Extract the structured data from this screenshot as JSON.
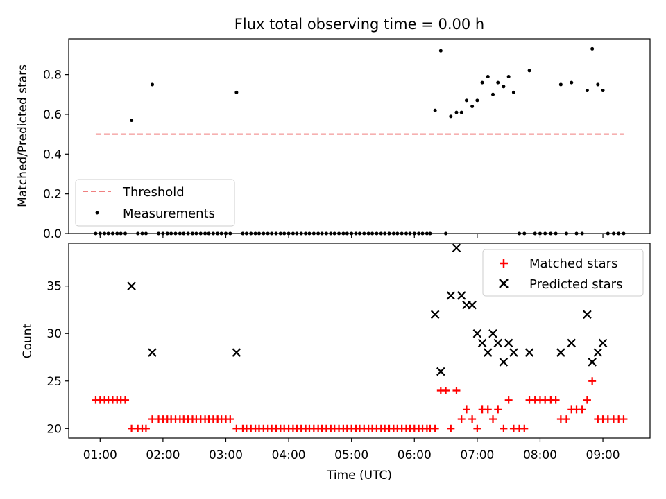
{
  "chart_data": {
    "type": "scatter",
    "title": "Flux total observing time = 0.00 h",
    "xlabel": "Time (UTC)",
    "x_unit": "hours (UTC)",
    "xticks": [
      {
        "value": 1,
        "label": "01:00"
      },
      {
        "value": 2,
        "label": "02:00"
      },
      {
        "value": 3,
        "label": "03:00"
      },
      {
        "value": 4,
        "label": "04:00"
      },
      {
        "value": 5,
        "label": "05:00"
      },
      {
        "value": 6,
        "label": "06:00"
      },
      {
        "value": 7,
        "label": "07:00"
      },
      {
        "value": 8,
        "label": "08:00"
      },
      {
        "value": 9,
        "label": "09:00"
      }
    ],
    "xlim": [
      0.5,
      9.75
    ],
    "panels": [
      {
        "ylabel": "Matched/Predicted stars",
        "ylim": [
          0,
          0.98
        ],
        "yticks": [
          0,
          0.2,
          0.4,
          0.6,
          0.8
        ],
        "ytick_labels": [
          "0.0",
          "0.2",
          "0.4",
          "0.6",
          "0.8"
        ],
        "legend_position": "lower-left",
        "series": [
          {
            "name": "Threshold",
            "kind": "dashed-line",
            "color": "#f08080",
            "x": [
              0.93,
              9.33
            ],
            "y": [
              0.5,
              0.5
            ]
          },
          {
            "name": "Measurements",
            "kind": "dot",
            "color": "#000000",
            "x": [
              0.93,
              1.0,
              1.07,
              1.13,
              1.2,
              1.27,
              1.33,
              1.4,
              1.5,
              1.6,
              1.67,
              1.73,
              1.83,
              1.93,
              2.0,
              2.07,
              2.13,
              2.2,
              2.27,
              2.33,
              2.4,
              2.47,
              2.53,
              2.6,
              2.67,
              2.73,
              2.8,
              2.87,
              2.93,
              3.0,
              3.07,
              3.17,
              3.27,
              3.33,
              3.4,
              3.47,
              3.53,
              3.6,
              3.67,
              3.73,
              3.8,
              3.87,
              3.93,
              4.0,
              4.07,
              4.13,
              4.2,
              4.27,
              4.33,
              4.4,
              4.47,
              4.53,
              4.6,
              4.67,
              4.73,
              4.8,
              4.87,
              4.93,
              5.0,
              5.07,
              5.13,
              5.2,
              5.27,
              5.33,
              5.4,
              5.47,
              5.53,
              5.6,
              5.67,
              5.73,
              5.8,
              5.87,
              5.93,
              6.0,
              6.07,
              6.13,
              6.2,
              6.25,
              6.33,
              6.42,
              6.5,
              6.58,
              6.67,
              6.75,
              6.83,
              6.92,
              7.0,
              7.08,
              7.17,
              7.25,
              7.33,
              7.42,
              7.5,
              7.58,
              7.67,
              7.75,
              7.83,
              7.92,
              8.0,
              8.08,
              8.17,
              8.25,
              8.33,
              8.42,
              8.5,
              8.58,
              8.67,
              8.75,
              8.83,
              8.92,
              9.0,
              9.08,
              9.17,
              9.25,
              9.33
            ],
            "y": [
              0,
              0,
              0,
              0,
              0,
              0,
              0,
              0,
              0.57,
              0,
              0,
              0,
              0.75,
              0,
              0,
              0,
              0,
              0,
              0,
              0,
              0,
              0,
              0,
              0,
              0,
              0,
              0,
              0,
              0,
              0,
              0,
              0.71,
              0,
              0,
              0,
              0,
              0,
              0,
              0,
              0,
              0,
              0,
              0,
              0,
              0,
              0,
              0,
              0,
              0,
              0,
              0,
              0,
              0,
              0,
              0,
              0,
              0,
              0,
              0,
              0,
              0,
              0,
              0,
              0,
              0,
              0,
              0,
              0,
              0,
              0,
              0,
              0,
              0,
              0,
              0,
              0,
              0,
              0,
              0.62,
              0.92,
              0,
              0.59,
              0.61,
              0.61,
              0.67,
              0.64,
              0.67,
              0.76,
              0.79,
              0.7,
              0.76,
              0.74,
              0.79,
              0.71,
              0,
              0,
              0.82,
              0,
              0,
              0,
              0,
              0,
              0.75,
              0,
              0.76,
              0,
              0,
              0.72,
              0.93,
              0.75,
              0.72,
              0,
              0,
              0,
              0
            ]
          }
        ]
      },
      {
        "ylabel": "Count",
        "ylim": [
          19,
          39.5
        ],
        "yticks": [
          20,
          25,
          30,
          35
        ],
        "ytick_labels": [
          "20",
          "25",
          "30",
          "35"
        ],
        "legend_position": "upper-right",
        "series": [
          {
            "name": "Matched stars",
            "kind": "plus",
            "color": "#ff0000",
            "x": [
              0.93,
              1.0,
              1.07,
              1.13,
              1.2,
              1.27,
              1.33,
              1.4,
              1.5,
              1.6,
              1.67,
              1.73,
              1.83,
              1.93,
              2.0,
              2.07,
              2.13,
              2.2,
              2.27,
              2.33,
              2.4,
              2.47,
              2.53,
              2.6,
              2.67,
              2.73,
              2.8,
              2.87,
              2.93,
              3.0,
              3.07,
              3.17,
              3.27,
              3.33,
              3.4,
              3.47,
              3.53,
              3.6,
              3.67,
              3.73,
              3.8,
              3.87,
              3.93,
              4.0,
              4.07,
              4.13,
              4.2,
              4.27,
              4.33,
              4.4,
              4.47,
              4.53,
              4.6,
              4.67,
              4.73,
              4.8,
              4.87,
              4.93,
              5.0,
              5.07,
              5.13,
              5.2,
              5.27,
              5.33,
              5.4,
              5.47,
              5.53,
              5.6,
              5.67,
              5.73,
              5.8,
              5.87,
              5.93,
              6.0,
              6.07,
              6.13,
              6.2,
              6.25,
              6.33,
              6.42,
              6.5,
              6.58,
              6.67,
              6.75,
              6.83,
              6.92,
              7.0,
              7.08,
              7.17,
              7.25,
              7.33,
              7.42,
              7.5,
              7.58,
              7.67,
              7.75,
              7.83,
              7.92,
              8.0,
              8.08,
              8.17,
              8.25,
              8.33,
              8.42,
              8.5,
              8.58,
              8.67,
              8.75,
              8.83,
              8.92,
              9.0,
              9.08,
              9.17,
              9.25,
              9.33
            ],
            "y": [
              23,
              23,
              23,
              23,
              23,
              23,
              23,
              23,
              20,
              20,
              20,
              20,
              21,
              21,
              21,
              21,
              21,
              21,
              21,
              21,
              21,
              21,
              21,
              21,
              21,
              21,
              21,
              21,
              21,
              21,
              21,
              20,
              20,
              20,
              20,
              20,
              20,
              20,
              20,
              20,
              20,
              20,
              20,
              20,
              20,
              20,
              20,
              20,
              20,
              20,
              20,
              20,
              20,
              20,
              20,
              20,
              20,
              20,
              20,
              20,
              20,
              20,
              20,
              20,
              20,
              20,
              20,
              20,
              20,
              20,
              20,
              20,
              20,
              20,
              20,
              20,
              20,
              20,
              20,
              24,
              24,
              20,
              24,
              21,
              22,
              21,
              20,
              22,
              22,
              21,
              22,
              20,
              23,
              20,
              20,
              20,
              23,
              23,
              23,
              23,
              23,
              23,
              21,
              21,
              22,
              22,
              22,
              23,
              25,
              21,
              21,
              21,
              21,
              21,
              21
            ]
          },
          {
            "name": "Predicted stars",
            "kind": "x",
            "color": "#000000",
            "x": [
              1.5,
              1.83,
              3.17,
              6.33,
              6.42,
              6.58,
              6.67,
              6.75,
              6.83,
              6.92,
              7.0,
              7.08,
              7.17,
              7.25,
              7.33,
              7.42,
              7.5,
              7.58,
              7.83,
              8.33,
              8.5,
              8.75,
              8.83,
              8.92,
              9.0
            ],
            "y": [
              35,
              28,
              28,
              32,
              26,
              34,
              39,
              34,
              33,
              33,
              30,
              29,
              28,
              30,
              29,
              27,
              29,
              28,
              28,
              28,
              29,
              32,
              27,
              28,
              29
            ]
          }
        ]
      }
    ]
  }
}
